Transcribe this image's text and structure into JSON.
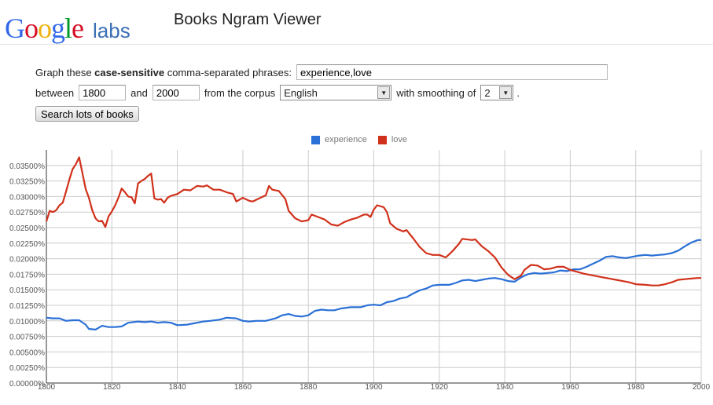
{
  "header": {
    "logo_letters": [
      {
        "ch": "G",
        "color": "#3369e8"
      },
      {
        "ch": "o",
        "color": "#d50f25"
      },
      {
        "ch": "o",
        "color": "#eeb211"
      },
      {
        "ch": "g",
        "color": "#3369e8"
      },
      {
        "ch": "l",
        "color": "#009925"
      },
      {
        "ch": "e",
        "color": "#d50f25"
      }
    ],
    "labs": "labs",
    "title": "Books Ngram Viewer"
  },
  "form": {
    "prompt_pre": "Graph these",
    "prompt_bold": "case-sensitive",
    "prompt_post": "comma-separated phrases:",
    "phrases_value": "experience,love",
    "between_label": "between",
    "start_year": "1800",
    "and_label": "and",
    "end_year": "2000",
    "corpus_label": "from the corpus",
    "corpus_value": "English",
    "smoothing_label": "with smoothing of",
    "smoothing_value": "2",
    "end_punct": ".",
    "search_button": "Search lots of books"
  },
  "colors": {
    "experience": "#2a70d6",
    "love": "#d0311b",
    "grid": "#cccccc",
    "axis": "#333333"
  },
  "chart_data": {
    "type": "line",
    "xlim": [
      1800,
      2000
    ],
    "ylim": [
      0,
      0.0375
    ],
    "x_ticks": [
      1800,
      1820,
      1840,
      1860,
      1880,
      1900,
      1920,
      1940,
      1960,
      1980,
      2000
    ],
    "y_ticks": [
      "0.00000%",
      "0.00250%",
      "0.00500%",
      "0.00750%",
      "0.01000%",
      "0.01250%",
      "0.01500%",
      "0.01750%",
      "0.02000%",
      "0.02250%",
      "0.02500%",
      "0.02750%",
      "0.03000%",
      "0.03250%",
      "0.03500%"
    ],
    "y_tick_values": [
      0,
      0.0025,
      0.005,
      0.0075,
      0.01,
      0.0125,
      0.015,
      0.0175,
      0.02,
      0.0225,
      0.025,
      0.0275,
      0.03,
      0.0325,
      0.035
    ],
    "grid": true,
    "legend": "top-center",
    "series": [
      {
        "name": "experience",
        "points": [
          [
            1800,
            0.0105
          ],
          [
            1802,
            0.0104
          ],
          [
            1804,
            0.0104
          ],
          [
            1806,
            0.01
          ],
          [
            1808,
            0.0101
          ],
          [
            1810,
            0.0101
          ],
          [
            1812,
            0.0094
          ],
          [
            1813,
            0.0087
          ],
          [
            1815,
            0.0086
          ],
          [
            1817,
            0.0092
          ],
          [
            1819,
            0.009
          ],
          [
            1821,
            0.009
          ],
          [
            1823,
            0.0091
          ],
          [
            1825,
            0.0097
          ],
          [
            1828,
            0.0099
          ],
          [
            1830,
            0.0098
          ],
          [
            1832,
            0.0099
          ],
          [
            1834,
            0.0097
          ],
          [
            1836,
            0.0098
          ],
          [
            1838,
            0.0097
          ],
          [
            1840,
            0.0093
          ],
          [
            1843,
            0.0094
          ],
          [
            1845,
            0.0096
          ],
          [
            1848,
            0.0099
          ],
          [
            1850,
            0.01
          ],
          [
            1853,
            0.0102
          ],
          [
            1855,
            0.0105
          ],
          [
            1858,
            0.0104
          ],
          [
            1860,
            0.01
          ],
          [
            1862,
            0.0099
          ],
          [
            1864,
            0.01
          ],
          [
            1867,
            0.01
          ],
          [
            1870,
            0.0104
          ],
          [
            1872,
            0.0109
          ],
          [
            1874,
            0.0111
          ],
          [
            1876,
            0.0108
          ],
          [
            1878,
            0.0107
          ],
          [
            1880,
            0.0109
          ],
          [
            1882,
            0.0116
          ],
          [
            1884,
            0.0118
          ],
          [
            1886,
            0.0117
          ],
          [
            1888,
            0.0117
          ],
          [
            1890,
            0.012
          ],
          [
            1893,
            0.0122
          ],
          [
            1896,
            0.0122
          ],
          [
            1898,
            0.0125
          ],
          [
            1900,
            0.0126
          ],
          [
            1902,
            0.0125
          ],
          [
            1904,
            0.013
          ],
          [
            1906,
            0.0132
          ],
          [
            1908,
            0.0136
          ],
          [
            1910,
            0.0138
          ],
          [
            1912,
            0.0144
          ],
          [
            1914,
            0.0149
          ],
          [
            1916,
            0.0152
          ],
          [
            1918,
            0.0157
          ],
          [
            1920,
            0.0158
          ],
          [
            1923,
            0.0158
          ],
          [
            1925,
            0.0161
          ],
          [
            1927,
            0.0165
          ],
          [
            1929,
            0.0166
          ],
          [
            1931,
            0.0164
          ],
          [
            1933,
            0.0166
          ],
          [
            1935,
            0.0168
          ],
          [
            1937,
            0.0169
          ],
          [
            1939,
            0.0167
          ],
          [
            1941,
            0.0164
          ],
          [
            1943,
            0.0163
          ],
          [
            1945,
            0.017
          ],
          [
            1947,
            0.0175
          ],
          [
            1949,
            0.0177
          ],
          [
            1951,
            0.0176
          ],
          [
            1953,
            0.0177
          ],
          [
            1955,
            0.0178
          ],
          [
            1957,
            0.0181
          ],
          [
            1959,
            0.018
          ],
          [
            1961,
            0.0183
          ],
          [
            1963,
            0.0183
          ],
          [
            1965,
            0.0187
          ],
          [
            1967,
            0.0192
          ],
          [
            1969,
            0.0197
          ],
          [
            1971,
            0.0203
          ],
          [
            1973,
            0.0204
          ],
          [
            1975,
            0.0202
          ],
          [
            1977,
            0.0201
          ],
          [
            1979,
            0.0203
          ],
          [
            1981,
            0.0205
          ],
          [
            1983,
            0.0206
          ],
          [
            1985,
            0.0205
          ],
          [
            1987,
            0.0206
          ],
          [
            1989,
            0.0207
          ],
          [
            1991,
            0.0209
          ],
          [
            1993,
            0.0213
          ],
          [
            1995,
            0.022
          ],
          [
            1997,
            0.0226
          ],
          [
            1999,
            0.023
          ],
          [
            2000,
            0.023
          ]
        ]
      },
      {
        "name": "love",
        "points": [
          [
            1800,
            0.026
          ],
          [
            1801,
            0.0277
          ],
          [
            1802,
            0.0275
          ],
          [
            1803,
            0.0278
          ],
          [
            1804,
            0.0286
          ],
          [
            1805,
            0.029
          ],
          [
            1806,
            0.0308
          ],
          [
            1807,
            0.0327
          ],
          [
            1808,
            0.0344
          ],
          [
            1809,
            0.0352
          ],
          [
            1810,
            0.0363
          ],
          [
            1811,
            0.0338
          ],
          [
            1812,
            0.0312
          ],
          [
            1813,
            0.0298
          ],
          [
            1814,
            0.0278
          ],
          [
            1815,
            0.0265
          ],
          [
            1816,
            0.026
          ],
          [
            1817,
            0.0261
          ],
          [
            1818,
            0.0251
          ],
          [
            1819,
            0.0268
          ],
          [
            1820,
            0.0276
          ],
          [
            1821,
            0.0286
          ],
          [
            1822,
            0.0298
          ],
          [
            1823,
            0.0313
          ],
          [
            1824,
            0.0307
          ],
          [
            1825,
            0.03
          ],
          [
            1826,
            0.0299
          ],
          [
            1827,
            0.0289
          ],
          [
            1828,
            0.0321
          ],
          [
            1829,
            0.0325
          ],
          [
            1830,
            0.0328
          ],
          [
            1831,
            0.0333
          ],
          [
            1832,
            0.0337
          ],
          [
            1833,
            0.0297
          ],
          [
            1834,
            0.0295
          ],
          [
            1835,
            0.0296
          ],
          [
            1836,
            0.029
          ],
          [
            1837,
            0.0298
          ],
          [
            1838,
            0.0301
          ],
          [
            1840,
            0.0304
          ],
          [
            1842,
            0.0311
          ],
          [
            1844,
            0.031
          ],
          [
            1846,
            0.0317
          ],
          [
            1848,
            0.0316
          ],
          [
            1849,
            0.0318
          ],
          [
            1851,
            0.0311
          ],
          [
            1853,
            0.0311
          ],
          [
            1855,
            0.0307
          ],
          [
            1857,
            0.0304
          ],
          [
            1858,
            0.0292
          ],
          [
            1860,
            0.0298
          ],
          [
            1862,
            0.0293
          ],
          [
            1863,
            0.0292
          ],
          [
            1865,
            0.0297
          ],
          [
            1867,
            0.0302
          ],
          [
            1868,
            0.0317
          ],
          [
            1869,
            0.0311
          ],
          [
            1871,
            0.0309
          ],
          [
            1873,
            0.0296
          ],
          [
            1874,
            0.0277
          ],
          [
            1876,
            0.0265
          ],
          [
            1878,
            0.026
          ],
          [
            1880,
            0.0262
          ],
          [
            1881,
            0.0271
          ],
          [
            1883,
            0.0267
          ],
          [
            1885,
            0.0263
          ],
          [
            1887,
            0.0255
          ],
          [
            1889,
            0.0253
          ],
          [
            1891,
            0.0259
          ],
          [
            1893,
            0.0263
          ],
          [
            1895,
            0.0266
          ],
          [
            1897,
            0.0271
          ],
          [
            1898,
            0.0271
          ],
          [
            1899,
            0.0267
          ],
          [
            1900,
            0.0279
          ],
          [
            1901,
            0.0286
          ],
          [
            1903,
            0.0283
          ],
          [
            1904,
            0.0275
          ],
          [
            1905,
            0.0257
          ],
          [
            1907,
            0.0248
          ],
          [
            1909,
            0.0244
          ],
          [
            1910,
            0.0246
          ],
          [
            1912,
            0.0233
          ],
          [
            1914,
            0.0219
          ],
          [
            1916,
            0.0209
          ],
          [
            1918,
            0.0206
          ],
          [
            1920,
            0.0206
          ],
          [
            1922,
            0.0202
          ],
          [
            1924,
            0.0212
          ],
          [
            1926,
            0.0224
          ],
          [
            1927,
            0.0232
          ],
          [
            1930,
            0.023
          ],
          [
            1931,
            0.0231
          ],
          [
            1933,
            0.022
          ],
          [
            1935,
            0.0212
          ],
          [
            1937,
            0.0202
          ],
          [
            1939,
            0.0186
          ],
          [
            1941,
            0.0174
          ],
          [
            1943,
            0.0167
          ],
          [
            1945,
            0.0173
          ],
          [
            1946,
            0.0182
          ],
          [
            1948,
            0.019
          ],
          [
            1950,
            0.0189
          ],
          [
            1952,
            0.0183
          ],
          [
            1954,
            0.0184
          ],
          [
            1956,
            0.0187
          ],
          [
            1958,
            0.0187
          ],
          [
            1960,
            0.0182
          ],
          [
            1962,
            0.0179
          ],
          [
            1964,
            0.0176
          ],
          [
            1966,
            0.0174
          ],
          [
            1968,
            0.0172
          ],
          [
            1970,
            0.017
          ],
          [
            1972,
            0.0168
          ],
          [
            1974,
            0.0166
          ],
          [
            1976,
            0.0164
          ],
          [
            1978,
            0.0162
          ],
          [
            1980,
            0.0159
          ],
          [
            1983,
            0.0158
          ],
          [
            1985,
            0.0157
          ],
          [
            1987,
            0.0157
          ],
          [
            1989,
            0.0159
          ],
          [
            1991,
            0.0162
          ],
          [
            1993,
            0.0166
          ],
          [
            1995,
            0.0167
          ],
          [
            1997,
            0.0168
          ],
          [
            1999,
            0.0169
          ],
          [
            2000,
            0.0169
          ]
        ]
      }
    ]
  }
}
